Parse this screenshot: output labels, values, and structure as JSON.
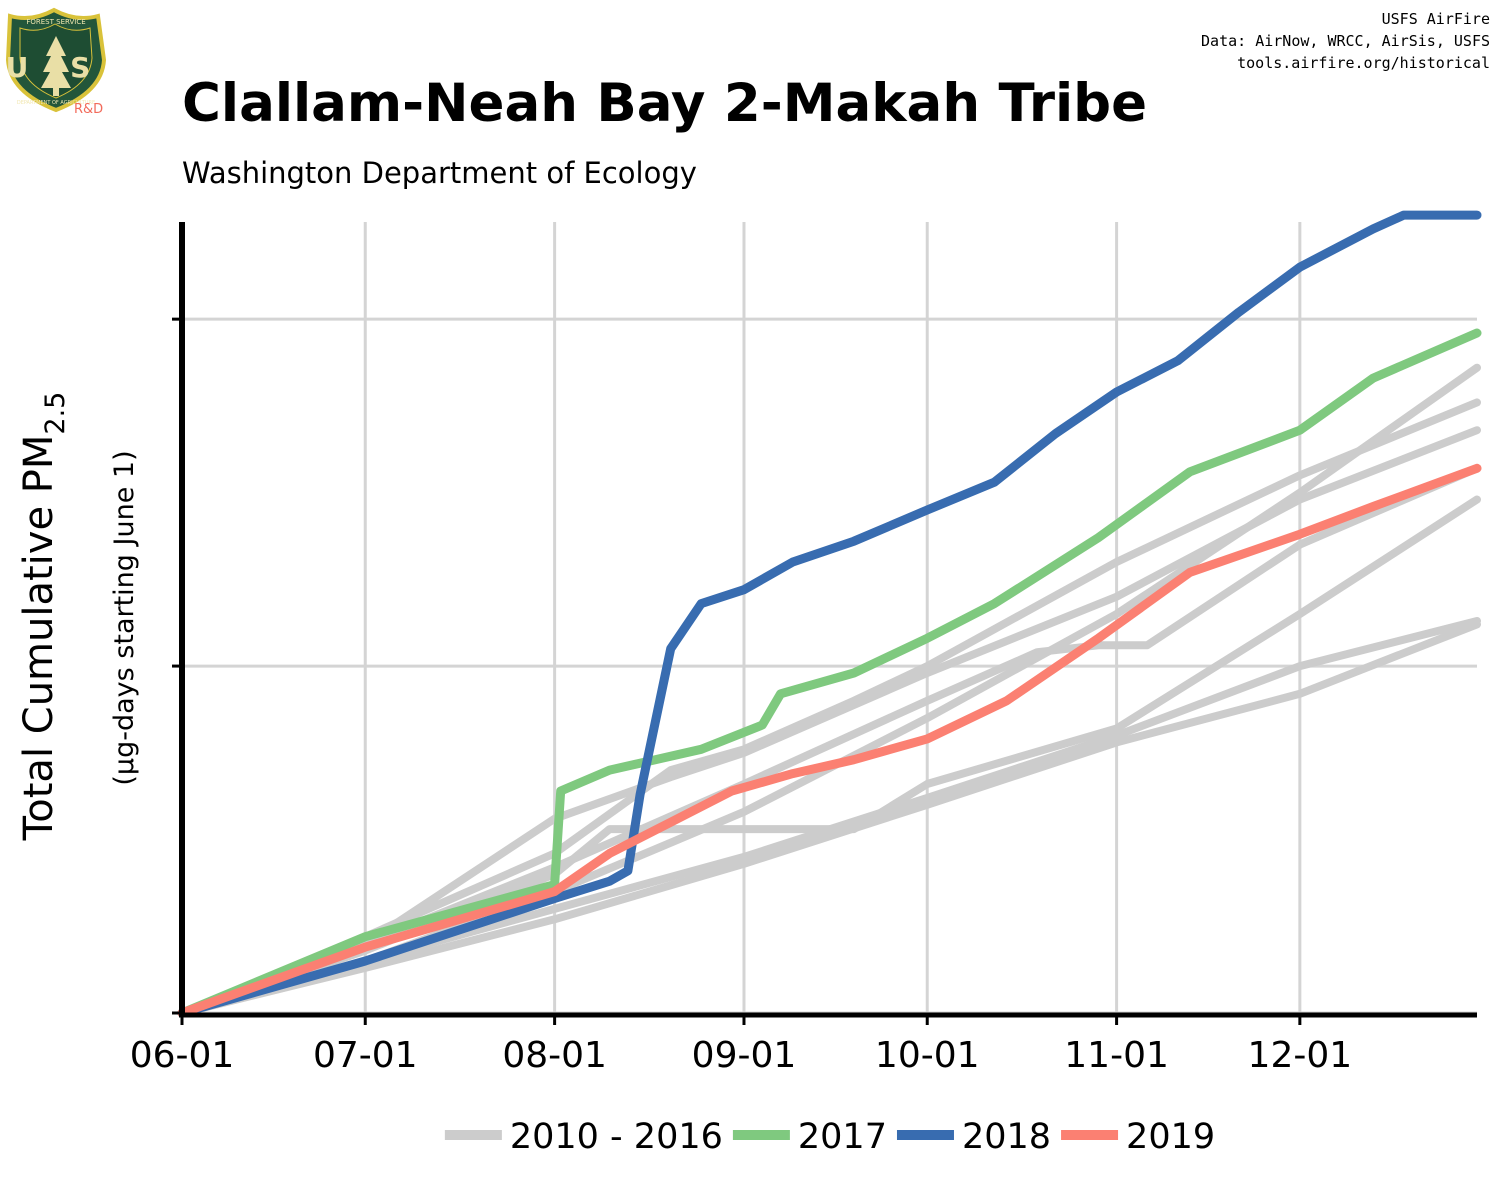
{
  "logo": {
    "icon": "usfs-shield-icon",
    "top_text": "FOREST SERVICE",
    "bottom_text": "DEPARTMENT OF AGRICULTURE",
    "letters": "U S",
    "tag": "R&D",
    "colors": {
      "shield_fill": "#23563a",
      "shield_border": "#d9c23a",
      "tag": "#f26b5b"
    }
  },
  "credits": [
    "USFS AirFire",
    "Data: AirNow, WRCC, AirSis, USFS",
    "tools.airfire.org/historical"
  ],
  "header": {
    "title": "Clallam-Neah Bay 2-Makah Tribe",
    "subtitle": "Washington Department of Ecology"
  },
  "chart_data": {
    "type": "line",
    "ylabel": "Total Cumulative PM",
    "ylabel_subscript": "2.5",
    "ylabel_note": "(µg-days starting June 1)",
    "x_ticks": [
      "06-01",
      "07-01",
      "08-01",
      "09-01",
      "10-01",
      "11-01",
      "12-01"
    ],
    "x_tick_days": [
      0,
      30,
      61,
      92,
      122,
      153,
      183
    ],
    "xlim": [
      0,
      212
    ],
    "ylim": [
      0,
      2.28
    ],
    "y_ticks": [
      0,
      1,
      2
    ],
    "y_tick_labels_shown": false,
    "grid": true,
    "legend_position": "bottom",
    "legend": [
      {
        "label": "2010 - 2016",
        "color": "#cccccc"
      },
      {
        "label": "2017",
        "color": "#7fc97f"
      },
      {
        "label": "2018",
        "color": "#386cb0"
      },
      {
        "label": "2019",
        "color": "#fb8072"
      }
    ],
    "series": [
      {
        "group": "2010 - 2016",
        "color": "#cccccc",
        "x": [
          0,
          30,
          61,
          92,
          122,
          153,
          183,
          212
        ],
        "y": [
          0,
          0.15,
          0.35,
          0.58,
          0.85,
          1.15,
          1.5,
          1.86
        ]
      },
      {
        "group": "2010 - 2016",
        "color": "#cccccc",
        "x": [
          0,
          30,
          61,
          80,
          92,
          122,
          153,
          183,
          212
        ],
        "y": [
          0,
          0.2,
          0.56,
          0.68,
          0.75,
          0.98,
          1.2,
          1.48,
          1.68
        ]
      },
      {
        "group": "2010 - 2016",
        "color": "#cccccc",
        "x": [
          0,
          30,
          61,
          80,
          92,
          110,
          122,
          153,
          183,
          212
        ],
        "y": [
          0,
          0.22,
          0.46,
          0.7,
          0.76,
          0.9,
          1,
          1.3,
          1.55,
          1.76
        ]
      },
      {
        "group": "2010 - 2016",
        "color": "#cccccc",
        "x": [
          0,
          30,
          61,
          70,
          110,
          122,
          153,
          183,
          212
        ],
        "y": [
          0,
          0.18,
          0.4,
          0.53,
          0.53,
          0.66,
          0.82,
          1.15,
          1.48
        ]
      },
      {
        "group": "2010 - 2016",
        "color": "#cccccc",
        "x": [
          0,
          30,
          61,
          92,
          122,
          140,
          150,
          158,
          183,
          212
        ],
        "y": [
          0,
          0.2,
          0.42,
          0.66,
          0.9,
          1.04,
          1.06,
          1.06,
          1.35,
          1.57
        ]
      },
      {
        "group": "2010 - 2016",
        "color": "#cccccc",
        "x": [
          0,
          30,
          61,
          92,
          122,
          153,
          183,
          212
        ],
        "y": [
          0,
          0.15,
          0.3,
          0.45,
          0.62,
          0.8,
          1,
          1.13
        ]
      },
      {
        "group": "2010 - 2016",
        "color": "#cccccc",
        "x": [
          0,
          30,
          61,
          92,
          122,
          153,
          183,
          212
        ],
        "y": [
          0,
          0.13,
          0.27,
          0.43,
          0.6,
          0.78,
          0.92,
          1.12
        ]
      },
      {
        "name": "2017",
        "color": "#7fc97f",
        "x": [
          0,
          30,
          61,
          62,
          70,
          85,
          95,
          98,
          110,
          122,
          133,
          150,
          165,
          183,
          195,
          212
        ],
        "y": [
          0,
          0.22,
          0.37,
          0.64,
          0.7,
          0.76,
          0.83,
          0.92,
          0.98,
          1.08,
          1.18,
          1.37,
          1.56,
          1.68,
          1.83,
          1.96
        ]
      },
      {
        "name": "2018",
        "color": "#386cb0",
        "x": [
          0,
          30,
          61,
          70,
          73,
          75,
          80,
          85,
          92,
          100,
          110,
          122,
          133,
          143,
          153,
          163,
          173,
          183,
          195,
          200,
          212
        ],
        "y": [
          0,
          0.15,
          0.33,
          0.38,
          0.41,
          0.63,
          1.05,
          1.18,
          1.22,
          1.3,
          1.36,
          1.45,
          1.53,
          1.67,
          1.79,
          1.88,
          2.02,
          2.15,
          2.26,
          2.3,
          2.3
        ]
      },
      {
        "name": "2019",
        "color": "#fb8072",
        "x": [
          0,
          30,
          61,
          70,
          80,
          90,
          100,
          110,
          122,
          135,
          150,
          165,
          183,
          195,
          212
        ],
        "y": [
          0,
          0.19,
          0.35,
          0.46,
          0.55,
          0.64,
          0.69,
          0.73,
          0.79,
          0.9,
          1.08,
          1.27,
          1.38,
          1.46,
          1.57
        ]
      }
    ]
  }
}
